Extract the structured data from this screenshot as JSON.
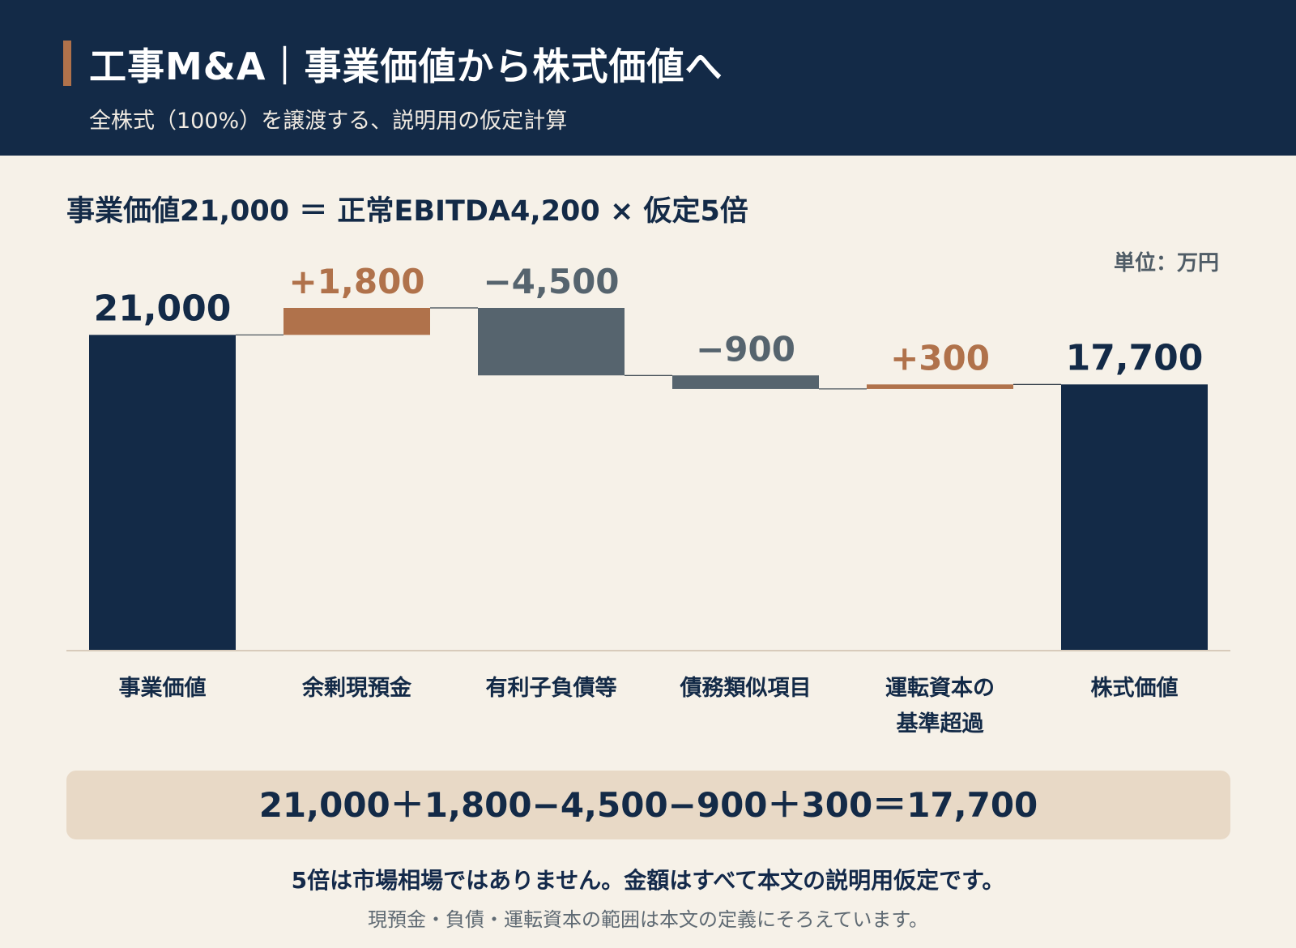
{
  "header": {
    "title": "工事M&A｜事業価値から株式価値へ",
    "subtitle": "全株式（100%）を譲渡する、説明用の仮定計算"
  },
  "formula": "事業価値21,000 ＝ 正常EBITDA4,200 × 仮定5倍",
  "unit_label": "単位：万円",
  "colors": {
    "navy": "#132a47",
    "copper": "#b0724b",
    "slate": "#56646e",
    "background": "#f6f1e8",
    "summary_box": "#e8d9c6"
  },
  "chart_data": {
    "type": "waterfall",
    "steps": [
      {
        "label": [
          "事業価値"
        ],
        "value": 21000,
        "kind": "total",
        "display": "21,000"
      },
      {
        "label": [
          "余剰現預金"
        ],
        "value": 1800,
        "kind": "increase",
        "display": "+1,800"
      },
      {
        "label": [
          "有利子負債等"
        ],
        "value": -4500,
        "kind": "decrease",
        "display": "−4,500"
      },
      {
        "label": [
          "債務類似項目"
        ],
        "value": -900,
        "kind": "decrease",
        "display": "−900"
      },
      {
        "label": [
          "運転資本の",
          "基準超過"
        ],
        "value": 300,
        "kind": "increase",
        "display": "+300"
      },
      {
        "label": [
          "株式価値"
        ],
        "value": 17700,
        "kind": "total",
        "display": "17,700"
      }
    ],
    "ylim": [
      0,
      22800
    ]
  },
  "summary_formula": "21,000＋1,800−4,500−900＋300＝17,700",
  "notes": {
    "line1": "5倍は市場相場ではありません。金額はすべて本文の説明用仮定です。",
    "line2": "現預金・負債・運転資本の範囲は本文の定義にそろえています。"
  }
}
